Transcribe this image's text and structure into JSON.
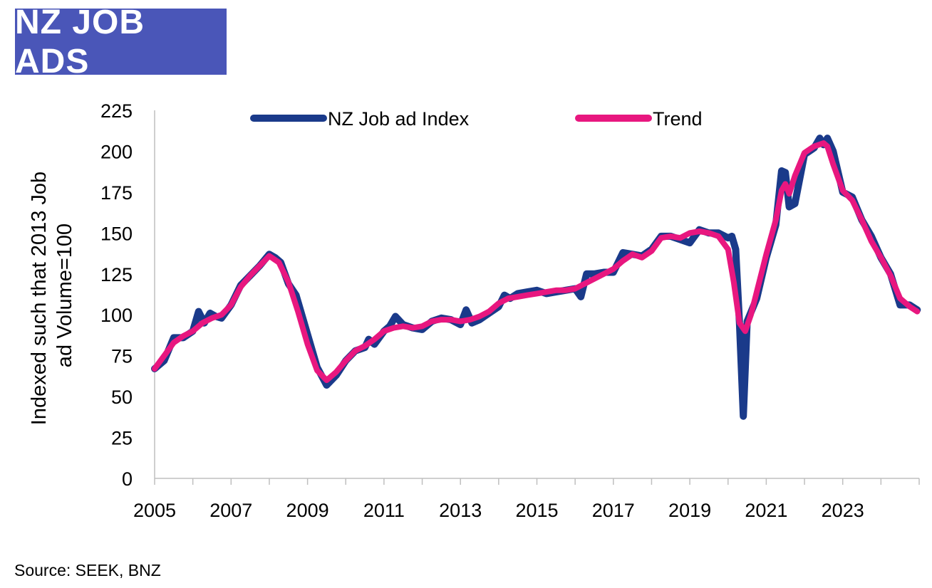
{
  "header": {
    "title": "NZ JOB ADS"
  },
  "footer": {
    "source": "Source: SEEK, BNZ"
  },
  "colors": {
    "title_bg": "#4a56b8",
    "index_series": "#1a3a8a",
    "trend_series": "#e8177f"
  },
  "chart_data": {
    "type": "line",
    "title": "NZ JOB ADS",
    "xlabel": "",
    "ylabel": "Indexed such that 2013 Job ad Volume=100",
    "ylim": [
      0,
      225
    ],
    "xlim": [
      2005,
      2025
    ],
    "yticks": [
      0,
      25,
      50,
      75,
      100,
      125,
      150,
      175,
      200,
      225
    ],
    "xticks": [
      2005,
      2007,
      2009,
      2011,
      2013,
      2015,
      2017,
      2019,
      2021,
      2023
    ],
    "grid": false,
    "legend": "top",
    "series": [
      {
        "name": "NZ Job ad Index",
        "x": [
          2005.0,
          2005.25,
          2005.5,
          2005.75,
          2006.0,
          2006.15,
          2006.3,
          2006.45,
          2006.6,
          2006.75,
          2007.0,
          2007.25,
          2007.5,
          2007.75,
          2008.0,
          2008.15,
          2008.3,
          2008.5,
          2008.7,
          2009.0,
          2009.25,
          2009.5,
          2009.75,
          2010.0,
          2010.25,
          2010.5,
          2010.6,
          2010.75,
          2011.0,
          2011.15,
          2011.3,
          2011.5,
          2011.75,
          2012.0,
          2012.25,
          2012.5,
          2012.75,
          2013.0,
          2013.15,
          2013.3,
          2013.5,
          2013.75,
          2014.0,
          2014.15,
          2014.3,
          2014.5,
          2014.75,
          2015.0,
          2015.25,
          2015.5,
          2015.75,
          2016.0,
          2016.15,
          2016.3,
          2016.5,
          2016.75,
          2017.0,
          2017.25,
          2017.5,
          2017.75,
          2018.0,
          2018.25,
          2018.5,
          2018.75,
          2019.0,
          2019.25,
          2019.5,
          2019.75,
          2020.0,
          2020.1,
          2020.2,
          2020.3,
          2020.4,
          2020.5,
          2020.75,
          2021.0,
          2021.25,
          2021.4,
          2021.5,
          2021.6,
          2021.75,
          2022.0,
          2022.25,
          2022.4,
          2022.5,
          2022.6,
          2022.75,
          2023.0,
          2023.25,
          2023.5,
          2023.75,
          2024.0,
          2024.25,
          2024.5,
          2024.75,
          2024.95
        ],
        "values": [
          67,
          72,
          86,
          86,
          90,
          102,
          95,
          101,
          99,
          98,
          106,
          118,
          124,
          130,
          137,
          135,
          132,
          119,
          112,
          88,
          68,
          57,
          63,
          72,
          78,
          80,
          85,
          82,
          90,
          93,
          99,
          94,
          92,
          91,
          96,
          98,
          97,
          94,
          103,
          95,
          97,
          101,
          105,
          112,
          110,
          113,
          114,
          115,
          113,
          114,
          115,
          116,
          111,
          125,
          125,
          126,
          126,
          138,
          137,
          136,
          140,
          148,
          148,
          146,
          144,
          152,
          150,
          150,
          147,
          148,
          140,
          95,
          38,
          96,
          110,
          135,
          155,
          188,
          187,
          166,
          168,
          198,
          202,
          208,
          204,
          208,
          200,
          175,
          172,
          158,
          148,
          135,
          125,
          106,
          106,
          103
        ]
      },
      {
        "name": "Trend",
        "x": [
          2005.0,
          2005.25,
          2005.5,
          2005.75,
          2006.0,
          2006.25,
          2006.5,
          2006.75,
          2007.0,
          2007.25,
          2007.5,
          2007.75,
          2008.0,
          2008.25,
          2008.5,
          2008.75,
          2009.0,
          2009.25,
          2009.5,
          2009.75,
          2010.0,
          2010.25,
          2010.5,
          2010.75,
          2011.0,
          2011.25,
          2011.5,
          2011.75,
          2012.0,
          2012.25,
          2012.5,
          2012.75,
          2013.0,
          2013.25,
          2013.5,
          2013.75,
          2014.0,
          2014.25,
          2014.5,
          2014.75,
          2015.0,
          2015.25,
          2015.5,
          2015.75,
          2016.0,
          2016.25,
          2016.5,
          2016.75,
          2017.0,
          2017.25,
          2017.5,
          2017.75,
          2018.0,
          2018.25,
          2018.5,
          2018.75,
          2019.0,
          2019.25,
          2019.5,
          2019.75,
          2020.0,
          2020.15,
          2020.3,
          2020.45,
          2020.6,
          2020.75,
          2021.0,
          2021.25,
          2021.4,
          2021.5,
          2021.6,
          2021.75,
          2022.0,
          2022.25,
          2022.5,
          2022.6,
          2022.75,
          2023.0,
          2023.25,
          2023.5,
          2023.75,
          2024.0,
          2024.25,
          2024.5,
          2024.75,
          2024.95
        ],
        "values": [
          67,
          75,
          83,
          87,
          90,
          95,
          98,
          100,
          106,
          117,
          124,
          130,
          136,
          132,
          120,
          102,
          82,
          66,
          60,
          65,
          72,
          78,
          81,
          85,
          90,
          92,
          93,
          92,
          93,
          96,
          97,
          97,
          96,
          97,
          99,
          102,
          107,
          110,
          111,
          112,
          113,
          114,
          115,
          115,
          116,
          119,
          122,
          125,
          128,
          133,
          137,
          135,
          139,
          147,
          148,
          147,
          150,
          151,
          150,
          148,
          140,
          120,
          95,
          90,
          100,
          114,
          137,
          158,
          176,
          180,
          174,
          185,
          199,
          203,
          205,
          203,
          192,
          176,
          170,
          158,
          145,
          135,
          124,
          110,
          105,
          102
        ]
      }
    ]
  }
}
